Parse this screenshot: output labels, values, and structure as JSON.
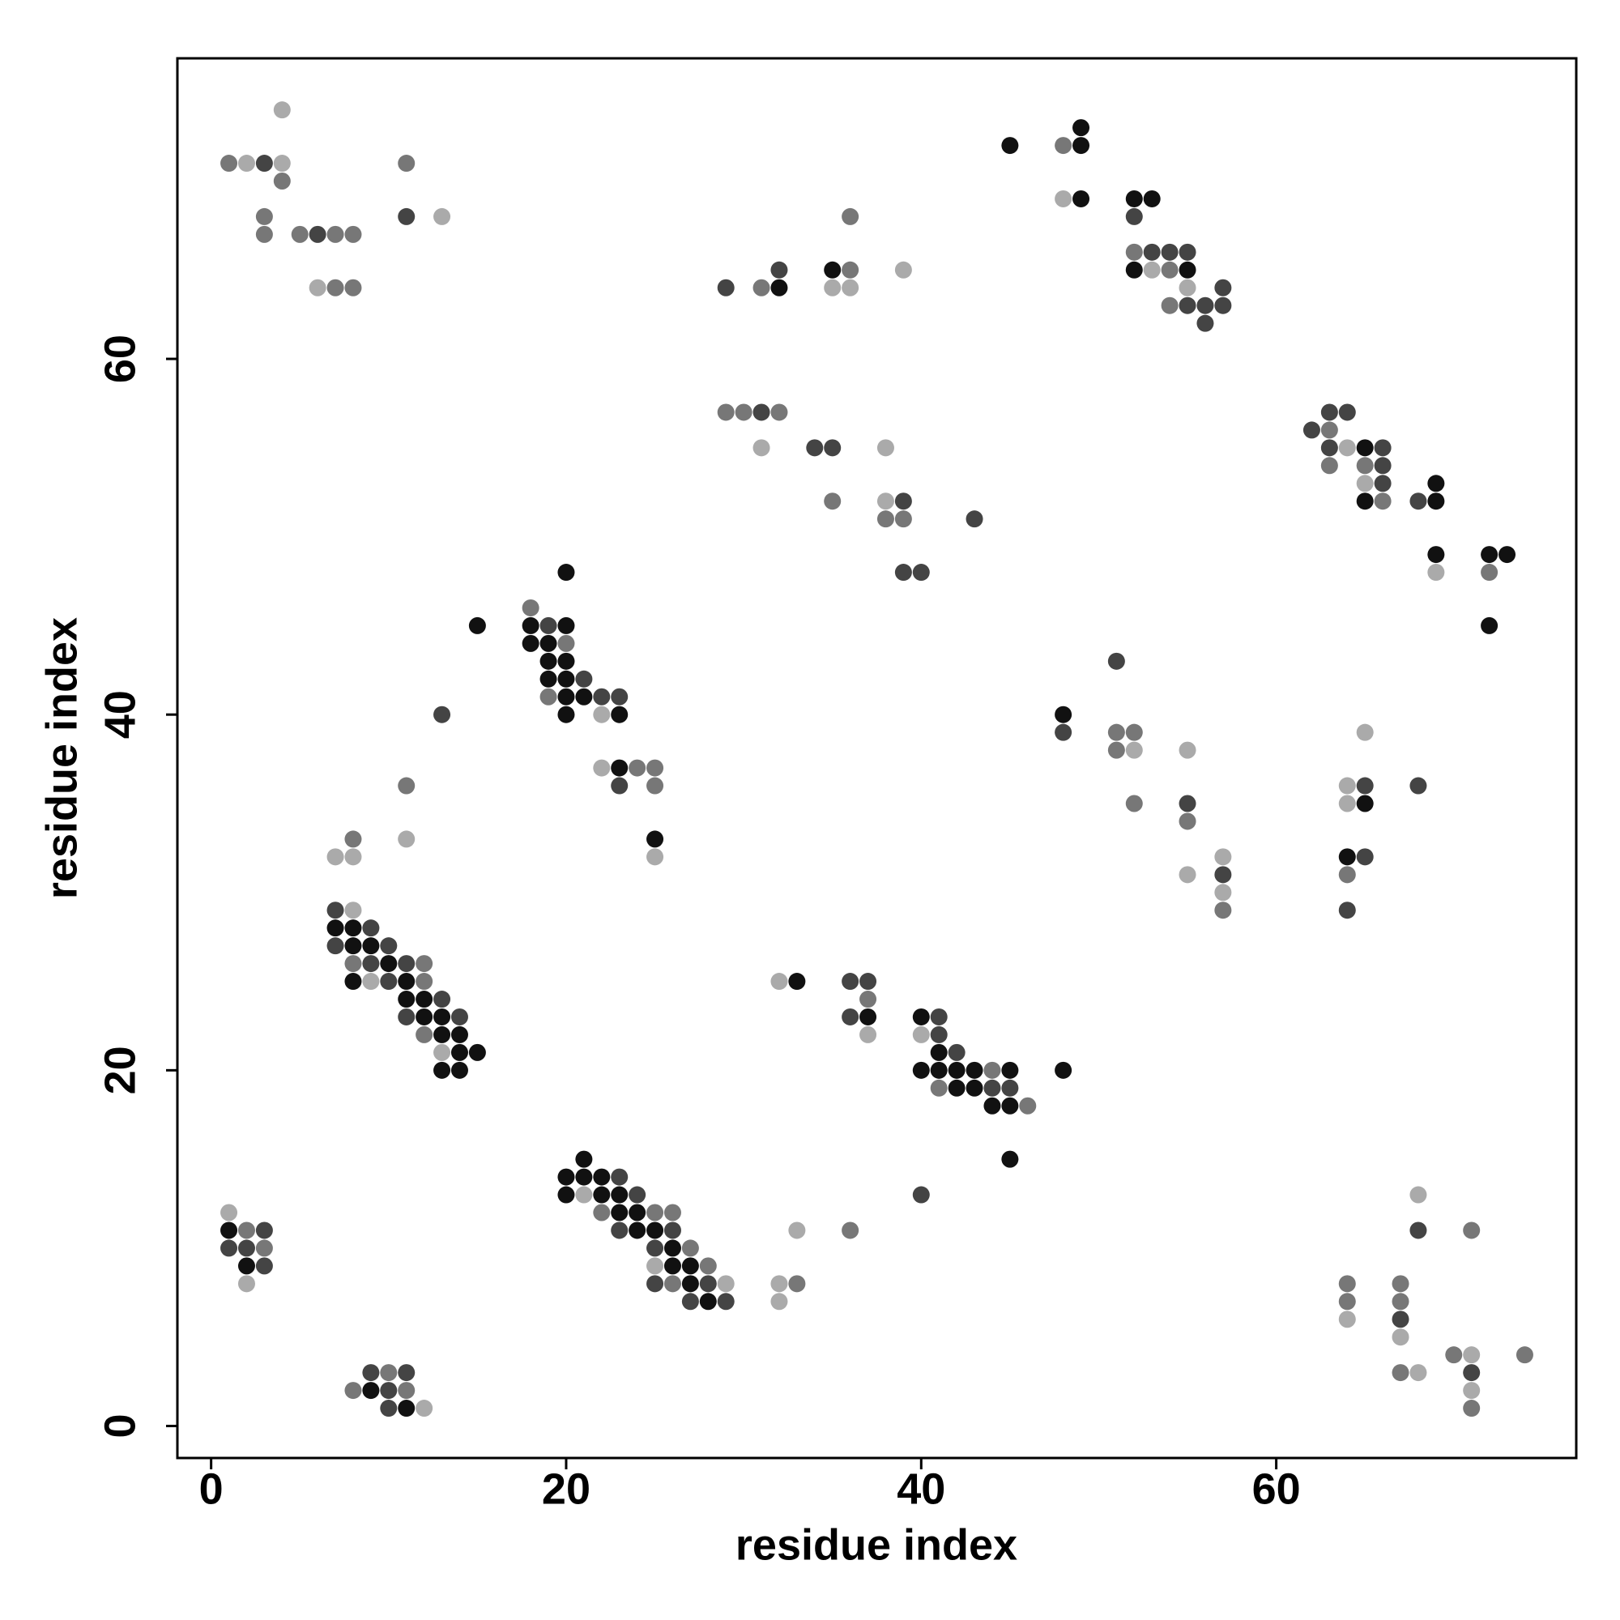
{
  "chart_data": {
    "type": "scatter",
    "x_label": "residue index",
    "y_label": "residue index",
    "xlim": [
      -1.9,
      76.9
    ],
    "ylim": [
      -1.8,
      76.9
    ],
    "xticks": [
      0,
      20,
      40,
      60
    ],
    "yticks": [
      0,
      20,
      40,
      60
    ],
    "x": [
      1,
      2,
      3,
      4,
      4,
      4,
      3,
      3,
      5,
      6,
      7,
      8,
      6,
      7,
      8,
      11,
      11,
      13,
      29,
      31,
      32,
      32,
      35,
      35,
      36,
      36,
      36,
      39,
      45,
      48,
      49,
      49,
      48,
      49,
      52,
      53,
      52,
      52,
      53,
      54,
      55,
      52,
      53,
      54,
      55,
      55,
      54,
      55,
      56,
      56,
      57,
      57,
      29,
      30,
      31,
      32,
      31,
      34,
      35,
      35,
      38,
      38,
      39,
      38,
      39,
      43,
      39,
      40,
      62,
      63,
      63,
      64,
      63,
      64,
      65,
      66,
      63,
      65,
      66,
      65,
      66,
      65,
      66,
      68,
      69,
      69,
      69,
      69,
      72,
      73,
      72,
      72,
      15,
      18,
      18,
      19,
      20,
      20,
      18,
      19,
      20,
      19,
      20,
      19,
      20,
      21,
      19,
      20,
      21,
      22,
      23,
      20,
      22,
      23,
      13,
      22,
      23,
      24,
      25,
      23,
      25,
      25,
      25,
      11,
      11,
      8,
      7,
      8,
      48,
      48,
      51,
      51,
      52,
      51,
      52,
      52,
      55,
      55,
      55,
      55,
      57,
      57,
      57,
      57,
      65,
      64,
      65,
      64,
      65,
      68,
      64,
      65,
      64,
      64,
      7,
      8,
      7,
      8,
      9,
      7,
      8,
      9,
      10,
      8,
      9,
      10,
      11,
      12,
      8,
      9,
      10,
      11,
      12,
      11,
      12,
      13,
      11,
      12,
      13,
      14,
      12,
      13,
      14,
      13,
      14,
      15,
      13,
      14,
      32,
      33,
      36,
      37,
      37,
      36,
      37,
      37,
      40,
      41,
      40,
      41,
      41,
      42,
      40,
      41,
      42,
      43,
      44,
      45,
      48,
      41,
      42,
      43,
      44,
      45,
      44,
      45,
      46,
      45,
      40,
      21,
      20,
      21,
      22,
      23,
      20,
      21,
      22,
      23,
      24,
      22,
      23,
      24,
      25,
      26,
      23,
      24,
      25,
      26,
      25,
      26,
      27,
      25,
      26,
      27,
      28,
      25,
      26,
      27,
      28,
      29,
      27,
      28,
      29,
      33,
      36,
      32,
      33,
      32,
      1,
      1,
      2,
      3,
      1,
      2,
      3,
      2,
      3,
      2,
      8,
      9,
      10,
      11,
      9,
      10,
      11,
      10,
      11,
      12,
      68,
      68,
      71,
      64,
      64,
      64,
      67,
      67,
      67,
      67,
      67,
      68,
      70,
      71,
      71,
      71,
      71,
      74
    ],
    "y": [
      71,
      71,
      71,
      71,
      74,
      70,
      68,
      67,
      67,
      67,
      67,
      67,
      64,
      64,
      64,
      71,
      68,
      68,
      64,
      64,
      64,
      65,
      65,
      64,
      65,
      64,
      68,
      65,
      72,
      72,
      72,
      73,
      69,
      69,
      69,
      69,
      68,
      66,
      66,
      66,
      66,
      65,
      65,
      65,
      65,
      64,
      63,
      63,
      63,
      62,
      64,
      63,
      57,
      57,
      57,
      57,
      55,
      55,
      55,
      52,
      55,
      52,
      52,
      51,
      51,
      51,
      48,
      48,
      56,
      56,
      57,
      57,
      55,
      55,
      55,
      55,
      54,
      54,
      54,
      53,
      53,
      52,
      52,
      52,
      52,
      53,
      49,
      48,
      49,
      49,
      48,
      45,
      45,
      46,
      45,
      45,
      45,
      48,
      44,
      44,
      44,
      43,
      43,
      42,
      42,
      42,
      41,
      41,
      41,
      41,
      41,
      40,
      40,
      40,
      40,
      37,
      37,
      37,
      37,
      36,
      36,
      33,
      32,
      36,
      33,
      33,
      32,
      32,
      40,
      39,
      43,
      39,
      39,
      38,
      38,
      35,
      38,
      35,
      34,
      31,
      32,
      31,
      30,
      29,
      39,
      36,
      36,
      35,
      35,
      36,
      32,
      32,
      31,
      29,
      29,
      29,
      28,
      28,
      28,
      27,
      27,
      27,
      27,
      26,
      26,
      26,
      26,
      26,
      25,
      25,
      25,
      25,
      25,
      24,
      24,
      24,
      23,
      23,
      23,
      23,
      22,
      22,
      22,
      21,
      21,
      21,
      20,
      20,
      25,
      25,
      25,
      25,
      24,
      23,
      23,
      22,
      23,
      23,
      22,
      22,
      21,
      21,
      20,
      20,
      20,
      20,
      20,
      20,
      20,
      19,
      19,
      19,
      19,
      19,
      18,
      18,
      18,
      15,
      13,
      15,
      14,
      14,
      14,
      14,
      13,
      13,
      13,
      13,
      13,
      12,
      12,
      12,
      12,
      12,
      11,
      11,
      11,
      11,
      10,
      10,
      10,
      9,
      9,
      9,
      9,
      8,
      8,
      8,
      8,
      8,
      7,
      7,
      7,
      11,
      11,
      8,
      8,
      7,
      12,
      11,
      11,
      11,
      10,
      10,
      10,
      9,
      9,
      8,
      2,
      3,
      3,
      3,
      2,
      2,
      2,
      1,
      1,
      1,
      13,
      11,
      11,
      8,
      7,
      6,
      8,
      7,
      6,
      5,
      3,
      3,
      4,
      4,
      3,
      2,
      1,
      4
    ],
    "colors": [
      "#777",
      "#aaa",
      "#444",
      "#aaa",
      "#aaa",
      "#777",
      "#777",
      "#777",
      "#777",
      "#444",
      "#777",
      "#777",
      "#aaa",
      "#777",
      "#777",
      "#777",
      "#444",
      "#aaa",
      "#444",
      "#777",
      "#111",
      "#444",
      "#111",
      "#aaa",
      "#777",
      "#aaa",
      "#777",
      "#aaa",
      "#111",
      "#777",
      "#111",
      "#111",
      "#aaa",
      "#111",
      "#111",
      "#111",
      "#444",
      "#777",
      "#444",
      "#444",
      "#444",
      "#111",
      "#aaa",
      "#777",
      "#111",
      "#aaa",
      "#777",
      "#444",
      "#444",
      "#444",
      "#444",
      "#444",
      "#777",
      "#777",
      "#444",
      "#777",
      "#aaa",
      "#444",
      "#444",
      "#777",
      "#aaa",
      "#aaa",
      "#444",
      "#777",
      "#777",
      "#444",
      "#444",
      "#444",
      "#444",
      "#777",
      "#444",
      "#444",
      "#444",
      "#aaa",
      "#111",
      "#444",
      "#777",
      "#777",
      "#444",
      "#aaa",
      "#444",
      "#111",
      "#777",
      "#444",
      "#111",
      "#111",
      "#111",
      "#aaa",
      "#111",
      "#111",
      "#777",
      "#111",
      "#111",
      "#777",
      "#111",
      "#444",
      "#111",
      "#111",
      "#111",
      "#111",
      "#777",
      "#111",
      "#111",
      "#111",
      "#111",
      "#444",
      "#777",
      "#111",
      "#111",
      "#444",
      "#444",
      "#111",
      "#aaa",
      "#111",
      "#444",
      "#aaa",
      "#111",
      "#777",
      "#777",
      "#444",
      "#777",
      "#111",
      "#aaa",
      "#777",
      "#aaa",
      "#777",
      "#aaa",
      "#aaa",
      "#111",
      "#444",
      "#444",
      "#777",
      "#777",
      "#777",
      "#aaa",
      "#777",
      "#aaa",
      "#444",
      "#777",
      "#aaa",
      "#aaa",
      "#444",
      "#aaa",
      "#777",
      "#aaa",
      "#aaa",
      "#444",
      "#aaa",
      "#111",
      "#444",
      "#111",
      "#444",
      "#777",
      "#444",
      "#444",
      "#aaa",
      "#111",
      "#111",
      "#444",
      "#444",
      "#111",
      "#111",
      "#444",
      "#777",
      "#444",
      "#111",
      "#444",
      "#777",
      "#111",
      "#aaa",
      "#444",
      "#111",
      "#777",
      "#111",
      "#111",
      "#444",
      "#444",
      "#111",
      "#111",
      "#444",
      "#777",
      "#111",
      "#111",
      "#aaa",
      "#111",
      "#111",
      "#111",
      "#111",
      "#aaa",
      "#111",
      "#444",
      "#444",
      "#777",
      "#444",
      "#111",
      "#aaa",
      "#111",
      "#444",
      "#aaa",
      "#444",
      "#111",
      "#444",
      "#111",
      "#111",
      "#111",
      "#111",
      "#777",
      "#111",
      "#111",
      "#777",
      "#111",
      "#111",
      "#444",
      "#444",
      "#111",
      "#111",
      "#777",
      "#111",
      "#444",
      "#111",
      "#111",
      "#111",
      "#111",
      "#444",
      "#111",
      "#aaa",
      "#111",
      "#111",
      "#444",
      "#777",
      "#111",
      "#111",
      "#777",
      "#777",
      "#444",
      "#111",
      "#111",
      "#444",
      "#444",
      "#111",
      "#777",
      "#aaa",
      "#111",
      "#111",
      "#777",
      "#444",
      "#777",
      "#111",
      "#444",
      "#aaa",
      "#444",
      "#111",
      "#444",
      "#aaa",
      "#777",
      "#aaa",
      "#777",
      "#aaa",
      "#aaa",
      "#111",
      "#777",
      "#444",
      "#444",
      "#444",
      "#777",
      "#111",
      "#444",
      "#aaa",
      "#777",
      "#444",
      "#777",
      "#444",
      "#111",
      "#444",
      "#777",
      "#444",
      "#111",
      "#aaa",
      "#aaa",
      "#444",
      "#777",
      "#777",
      "#777",
      "#aaa",
      "#777",
      "#777",
      "#444",
      "#aaa",
      "#777",
      "#aaa",
      "#777",
      "#aaa",
      "#444",
      "#aaa",
      "#777",
      "#777"
    ]
  }
}
